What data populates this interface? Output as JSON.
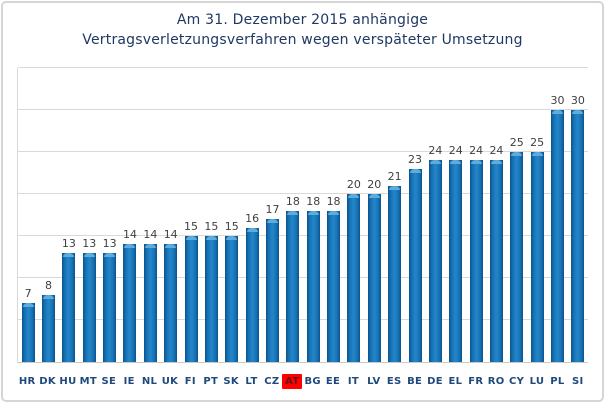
{
  "chart_data": {
    "type": "bar",
    "title_lines": [
      "Am 31. Dezember 2015 anhängige",
      "Vertragsverletzungsverfahren wegen verspäteter Umsetzung"
    ],
    "categories": [
      "HR",
      "DK",
      "HU",
      "MT",
      "SE",
      "IE",
      "NL",
      "UK",
      "FI",
      "PT",
      "SK",
      "LT",
      "CZ",
      "AT",
      "BG",
      "EE",
      "IT",
      "LV",
      "ES",
      "BE",
      "DE",
      "EL",
      "FR",
      "RO",
      "CY",
      "LU",
      "PL",
      "SI"
    ],
    "values": [
      7,
      8,
      13,
      13,
      13,
      14,
      14,
      14,
      15,
      15,
      15,
      16,
      17,
      18,
      18,
      18,
      20,
      20,
      21,
      23,
      24,
      24,
      24,
      24,
      25,
      25,
      30,
      30
    ],
    "highlighted_category": "AT",
    "xlabel": "",
    "ylabel": "",
    "ylim": [
      0,
      35
    ],
    "grid_interval": 5,
    "grid": true,
    "legend": "none",
    "data_labels": true,
    "colors": {
      "bar": "#1673b5",
      "bar_edge": "#0b538c",
      "bar_cap": "#62aedd",
      "title": "#1f3864",
      "category_label": "#1f497d",
      "value_label": "#3f3f3f",
      "highlight_background": "#ff0000",
      "highlight_text": "#6b1111",
      "gridline": "#d9d9d9",
      "frame_border": "#d5d5d5"
    }
  }
}
